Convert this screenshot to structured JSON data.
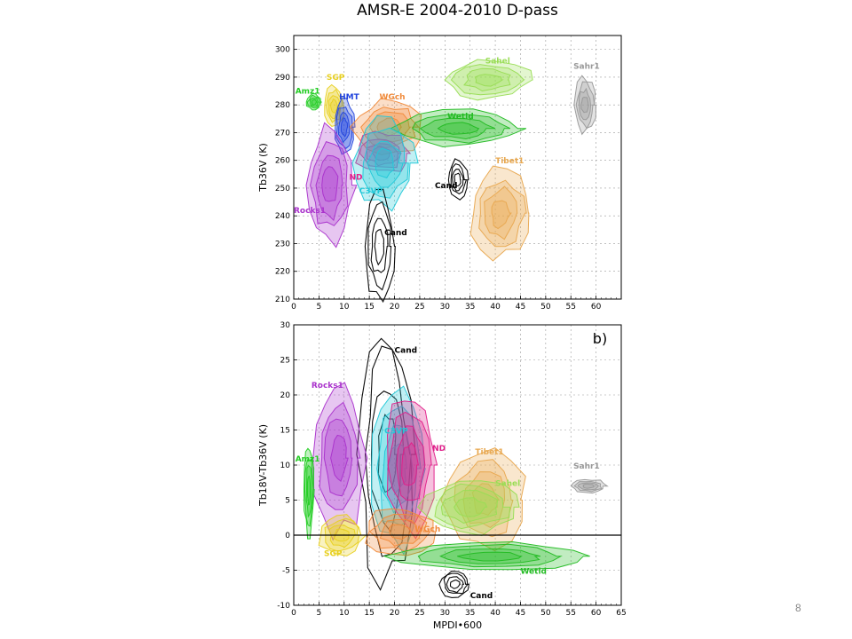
{
  "page_number": "8",
  "colors": {
    "Amz1": "#22cc22",
    "SGP": "#e8d020",
    "HMT": "#2244dd",
    "WGch": "#f08a3a",
    "Wetld": "#22bb22",
    "Sahel": "#99dd55",
    "Sahr1": "#999999",
    "Tibet1": "#e8a850",
    "ND": "#e0208a",
    "C3VP": "#22c8d8",
    "Rocks1": "#aa33cc",
    "Cand": "#000000"
  },
  "chart_data": [
    {
      "type": "scatter",
      "panel": "a",
      "title": "AMSR-E 2004-2010 D-pass",
      "xlabel": "",
      "ylabel": "Tb36V (K)",
      "xlim": [
        0,
        65
      ],
      "ylim": [
        210,
        305
      ],
      "xticks": [
        "0",
        "5",
        "10",
        "15",
        "20",
        "25",
        "30",
        "35",
        "40",
        "45",
        "50",
        "55",
        "60"
      ],
      "yticks": [
        "210",
        "220",
        "230",
        "240",
        "250",
        "260",
        "270",
        "280",
        "290",
        "300"
      ],
      "grid": true,
      "series": [
        {
          "name": "Amz1",
          "x": [
            2.5,
            5.5
          ],
          "y": [
            278,
            284
          ],
          "label_pos": [
            0.3,
            284
          ]
        },
        {
          "name": "SGP",
          "x": [
            6,
            10
          ],
          "y": [
            272,
            287
          ],
          "label_pos": [
            6.5,
            289
          ]
        },
        {
          "name": "HMT",
          "x": [
            8,
            12
          ],
          "y": [
            262,
            282
          ],
          "label_pos": [
            9,
            282
          ]
        },
        {
          "name": "WGch",
          "x": [
            12,
            26
          ],
          "y": [
            262,
            282
          ],
          "label_pos": [
            17,
            282
          ]
        },
        {
          "name": "Wetld",
          "x": [
            20,
            45
          ],
          "y": [
            265,
            278
          ],
          "label_pos": [
            30.5,
            275
          ]
        },
        {
          "name": "Sahel",
          "x": [
            30,
            47
          ],
          "y": [
            282,
            296
          ],
          "label_pos": [
            38,
            295
          ]
        },
        {
          "name": "Sahr1",
          "x": [
            55.5,
            60
          ],
          "y": [
            270,
            290
          ],
          "label_pos": [
            55.5,
            293
          ]
        },
        {
          "name": "Tibet1",
          "x": [
            35,
            47
          ],
          "y": [
            225,
            257
          ],
          "label_pos": [
            40,
            259
          ]
        },
        {
          "name": "ND",
          "x": [
            12,
            23
          ],
          "y": [
            255,
            270
          ],
          "label_pos": [
            11,
            253
          ]
        },
        {
          "name": "C3VP",
          "x": [
            12,
            24
          ],
          "y": [
            243,
            275
          ],
          "label_pos": [
            13,
            248
          ]
        },
        {
          "name": "Rocks1",
          "x": [
            2.5,
            12
          ],
          "y": [
            230,
            272
          ],
          "label_pos": [
            0,
            241
          ]
        },
        {
          "name": "Cand",
          "x": [
            14,
            20
          ],
          "y": [
            210,
            248
          ],
          "label_pos": [
            18,
            233
          ]
        },
        {
          "name": "Cand",
          "x": [
            30.5,
            34.5
          ],
          "y": [
            246,
            260
          ],
          "label_pos": [
            28,
            250
          ]
        }
      ]
    },
    {
      "type": "scatter",
      "panel": "b",
      "title": "",
      "panel_tag": "b)",
      "xlabel": "MPDI•600",
      "ylabel": "Tb18V-Tb36V (K)",
      "xlim": [
        0,
        65
      ],
      "ylim": [
        -10,
        30
      ],
      "xticks": [
        "0",
        "5",
        "10",
        "15",
        "20",
        "25",
        "30",
        "35",
        "40",
        "45",
        "50",
        "55",
        "60",
        "65"
      ],
      "yticks": [
        "-10",
        "-5",
        "0",
        "5",
        "10",
        "15",
        "20",
        "25",
        "30"
      ],
      "grid": true,
      "series": [
        {
          "name": "Cand",
          "x": [
            13,
            24
          ],
          "y": [
            -7,
            30
          ],
          "label_pos": [
            20,
            26
          ]
        },
        {
          "name": "Rocks1",
          "x": [
            4,
            14
          ],
          "y": [
            0,
            22
          ],
          "label_pos": [
            3.5,
            21
          ]
        },
        {
          "name": "Amz1",
          "x": [
            2,
            4
          ],
          "y": [
            0,
            13
          ],
          "label_pos": [
            0.3,
            10.5
          ]
        },
        {
          "name": "C3VP",
          "x": [
            15,
            26
          ],
          "y": [
            -2,
            21
          ],
          "label_pos": [
            18,
            14.5
          ]
        },
        {
          "name": "ND",
          "x": [
            18,
            28
          ],
          "y": [
            0,
            20
          ],
          "label_pos": [
            27.5,
            12
          ]
        },
        {
          "name": "Tibet1",
          "x": [
            30,
            46
          ],
          "y": [
            -2,
            12
          ],
          "label_pos": [
            36,
            11.5
          ]
        },
        {
          "name": "Sahel",
          "x": [
            25,
            45
          ],
          "y": [
            0,
            8
          ],
          "label_pos": [
            40,
            7
          ]
        },
        {
          "name": "Sahr1",
          "x": [
            55,
            62
          ],
          "y": [
            6,
            8
          ],
          "label_pos": [
            55.5,
            9.5
          ]
        },
        {
          "name": "SGP",
          "x": [
            5,
            14
          ],
          "y": [
            -3,
            3
          ],
          "label_pos": [
            6,
            -3
          ]
        },
        {
          "name": "WGch",
          "x": [
            14,
            28
          ],
          "y": [
            -3,
            4
          ],
          "label_pos": [
            24,
            0.5
          ]
        },
        {
          "name": "Wetld",
          "x": [
            20,
            58
          ],
          "y": [
            -5,
            -1
          ],
          "label_pos": [
            45,
            -5.5
          ]
        },
        {
          "name": "Cand",
          "x": [
            29,
            35
          ],
          "y": [
            -9,
            -5
          ],
          "label_pos": [
            35,
            -9
          ]
        }
      ]
    }
  ]
}
